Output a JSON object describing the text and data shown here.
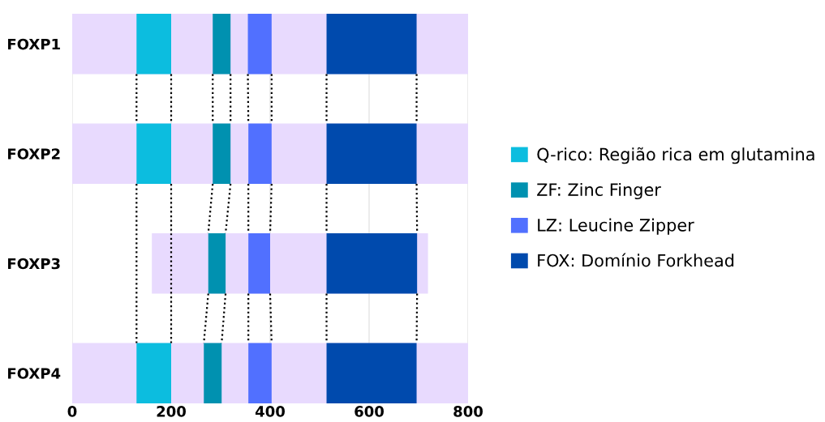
{
  "chart_data": {
    "type": "bar",
    "orientation": "horizontal",
    "categories": [
      "FOXP1",
      "FOXP2",
      "FOXP3",
      "FOXP4"
    ],
    "series": [
      {
        "color": "#e8dafe",
        "base": [
          0,
          0,
          161,
          0
        ],
        "values": [
          800,
          800,
          558,
          800
        ]
      },
      {
        "name": "Q-rico: Região rica em glutamina",
        "color": "#0cbddf",
        "base": [
          130,
          130,
          null,
          130
        ],
        "values": [
          70,
          70,
          null,
          70
        ]
      },
      {
        "name": "ZF: Zinc Finger",
        "color": "#0091b0",
        "base": [
          284,
          284,
          275,
          266
        ],
        "values": [
          36,
          36,
          35,
          36
        ]
      },
      {
        "name": "LZ: Leucine Zipper",
        "color": "#5170ff",
        "base": [
          355,
          356,
          356,
          356
        ],
        "values": [
          48,
          47,
          44,
          47
        ]
      },
      {
        "name": "FOX: Domínio Forkhead",
        "color": "#004aad",
        "base": [
          514,
          514,
          514,
          514
        ],
        "values": [
          182,
          182,
          183,
          182
        ]
      }
    ],
    "xlim": [
      0,
      800
    ],
    "xticks": [
      0,
      200,
      400,
      600,
      800
    ],
    "grid": "x",
    "legend": "right"
  }
}
